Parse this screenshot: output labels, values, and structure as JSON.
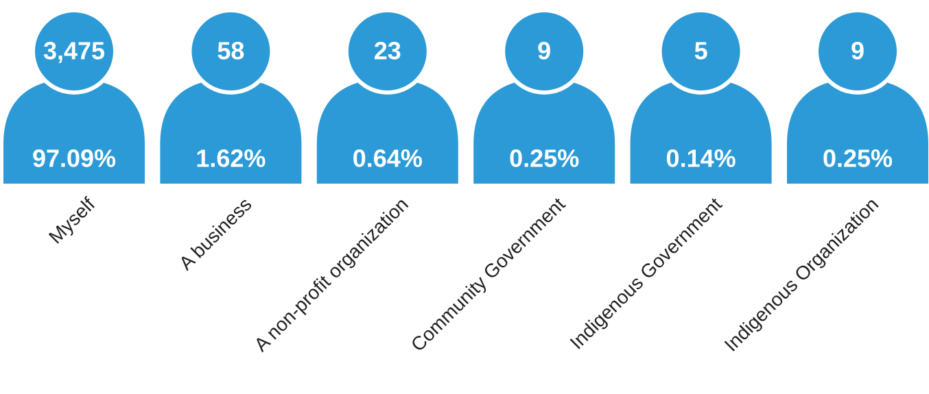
{
  "items": [
    {
      "count": "3,475",
      "share": "97.09%",
      "label": "Myself"
    },
    {
      "count": "58",
      "share": "1.62%",
      "label": "A business"
    },
    {
      "count": "23",
      "share": "0.64%",
      "label": "A non-profit organization"
    },
    {
      "count": "9",
      "share": "0.25%",
      "label": "Community Government"
    },
    {
      "count": "5",
      "share": "0.14%",
      "label": "Indigenous Government"
    },
    {
      "count": "9",
      "share": "0.25%",
      "label": "Indigenous Organization"
    }
  ]
}
